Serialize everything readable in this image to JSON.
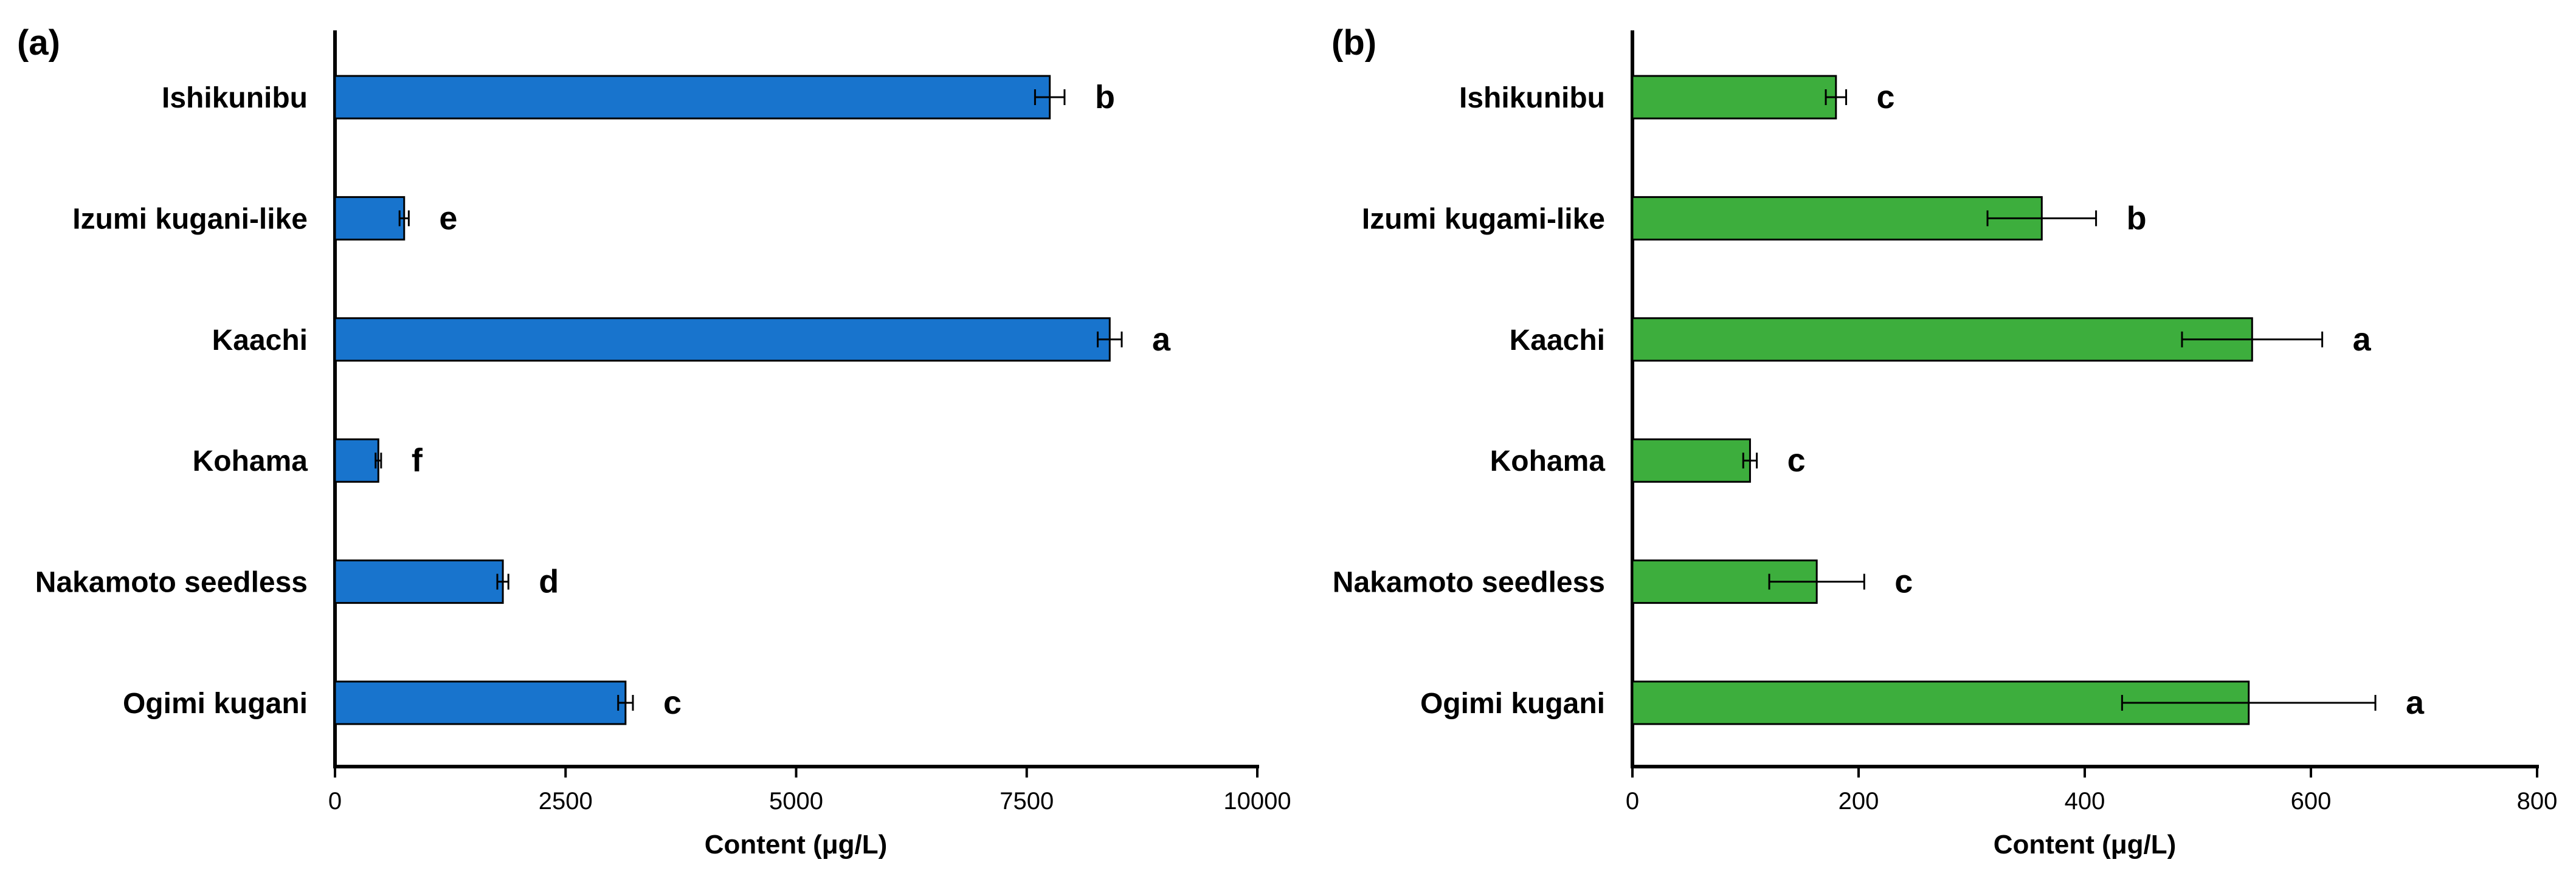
{
  "chart_data": [
    {
      "type": "bar",
      "orientation": "horizontal",
      "panel_label": "(a)",
      "categories": [
        "Ishikunibu",
        "Izumi kugani-like",
        "Kaachi",
        "Kohama",
        "Nakamoto seedless",
        "Ogimi kugani"
      ],
      "values": [
        7750,
        750,
        8400,
        470,
        1820,
        3150
      ],
      "errors": [
        160,
        50,
        130,
        30,
        60,
        80
      ],
      "significance_letters": [
        "b",
        "e",
        "a",
        "f",
        "d",
        "c"
      ],
      "xlabel": "Content (μg/L)",
      "xlim": [
        0,
        10000
      ],
      "xticks": [
        0,
        2500,
        5000,
        7500,
        10000
      ],
      "xtick_labels": [
        "0",
        "2500",
        "5000",
        "7500",
        "10000"
      ],
      "bar_color": "#1874CD",
      "grid": false
    },
    {
      "type": "bar",
      "orientation": "horizontal",
      "panel_label": "(b)",
      "categories": [
        "Ishikunibu",
        "Izumi kugami-like",
        "Kaachi",
        "Kohama",
        "Nakamoto seedless",
        "Ogimi kugani"
      ],
      "values": [
        180,
        362,
        548,
        104,
        163,
        545
      ],
      "errors": [
        9,
        48,
        62,
        6,
        42,
        112
      ],
      "significance_letters": [
        "c",
        "b",
        "a",
        "c",
        "c",
        "a"
      ],
      "xlabel": "Content (μg/L)",
      "xlim": [
        0,
        800
      ],
      "xticks": [
        0,
        200,
        400,
        600,
        800
      ],
      "xtick_labels": [
        "0",
        "200",
        "400",
        "600",
        "800"
      ],
      "bar_color": "#3DAE3D",
      "grid": false
    }
  ]
}
